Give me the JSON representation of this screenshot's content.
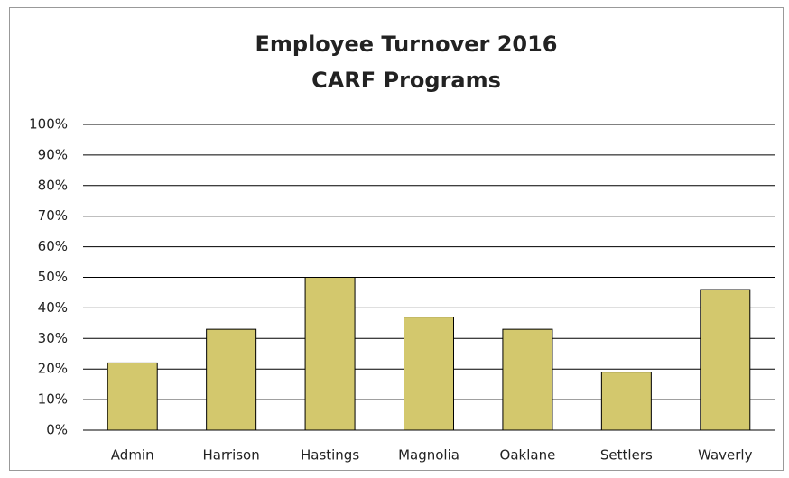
{
  "chart_data": {
    "type": "bar",
    "title": "Employee Turnover 2016",
    "subtitle": "CARF Programs",
    "categories": [
      "Admin",
      "Harrison",
      "Hastings",
      "Magnolia",
      "Oaklane",
      "Settlers",
      "Waverly"
    ],
    "values": [
      22,
      33,
      50,
      37,
      33,
      19,
      46
    ],
    "color": "#d3c86d",
    "ylim": [
      0,
      100
    ],
    "yticks": [
      {
        "value": 0,
        "label": "0%"
      },
      {
        "value": 10,
        "label": "10%"
      },
      {
        "value": 20,
        "label": "20%"
      },
      {
        "value": 30,
        "label": "30%"
      },
      {
        "value": 40,
        "label": "40%"
      },
      {
        "value": 50,
        "label": "50%"
      },
      {
        "value": 60,
        "label": "60%"
      },
      {
        "value": 70,
        "label": "70%"
      },
      {
        "value": 80,
        "label": "80%"
      },
      {
        "value": 90,
        "label": "90%"
      },
      {
        "value": 100,
        "label": "100%"
      }
    ],
    "grid": true
  }
}
